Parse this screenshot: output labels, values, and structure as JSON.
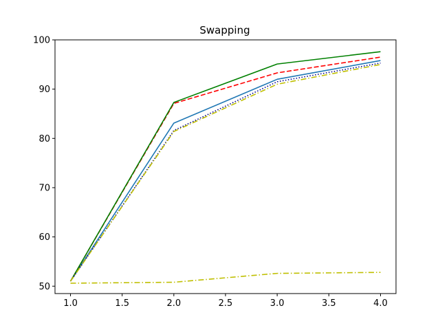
{
  "chart_data": {
    "type": "line",
    "title": "Swapping",
    "xlabel": "",
    "ylabel": "",
    "xlim": [
      0.85,
      4.15
    ],
    "ylim": [
      48.5,
      100
    ],
    "xticks": [
      1.0,
      1.5,
      2.0,
      2.5,
      3.0,
      3.5,
      4.0
    ],
    "xtick_labels": [
      "1.0",
      "1.5",
      "2.0",
      "2.5",
      "3.0",
      "3.5",
      "4.0"
    ],
    "yticks": [
      50,
      60,
      70,
      80,
      90,
      100
    ],
    "ytick_labels": [
      "50",
      "60",
      "70",
      "80",
      "90",
      "100"
    ],
    "grid": false,
    "legend": "none",
    "x": [
      1,
      2,
      3,
      4
    ],
    "series": [
      {
        "values": [
          51.0,
          83.1,
          92.0,
          95.8
        ],
        "color": "#1f77b4",
        "style": "solid"
      },
      {
        "values": [
          51.0,
          87.1,
          93.3,
          96.5
        ],
        "color": "#ff0000",
        "style": "dashed"
      },
      {
        "values": [
          51.0,
          87.3,
          95.1,
          97.6
        ],
        "color": "#008000",
        "style": "solid"
      },
      {
        "values": [
          51.0,
          81.6,
          91.5,
          95.3
        ],
        "color": "#00008b",
        "style": "dotted"
      },
      {
        "values": [
          51.0,
          81.4,
          91.0,
          95.0
        ],
        "color": "#bfbf00",
        "style": "dashdot"
      },
      {
        "values": [
          50.6,
          50.8,
          52.6,
          52.8
        ],
        "color": "#bfbf00",
        "style": "dashdot"
      }
    ]
  }
}
